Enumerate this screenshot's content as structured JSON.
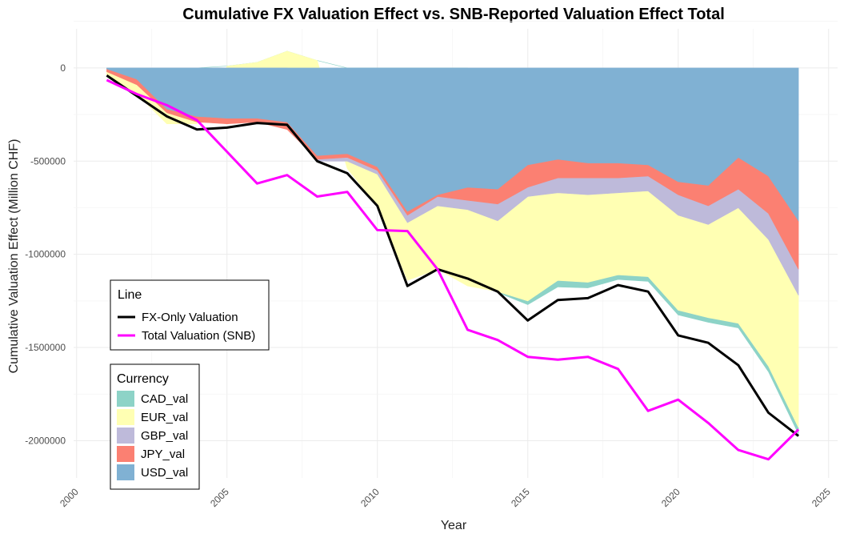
{
  "chart_data": {
    "type": "area",
    "title": "Cumulative FX Valuation Effect vs. SNB-Reported Valuation Effect Total",
    "xlabel": "Year",
    "ylabel": "Cumulative Valuation Effect (Million CHF)",
    "xlim": [
      1999.9,
      2025.3
    ],
    "ylim": [
      -2200000,
      210000
    ],
    "xticks": [
      2000,
      2005,
      2010,
      2015,
      2020,
      2025
    ],
    "yticks": [
      0,
      -500000,
      -1000000,
      -1500000,
      -2000000
    ],
    "ytick_labels": [
      "0",
      "-500000",
      "-1000000",
      "-1500000",
      "-2000000"
    ],
    "grid": true,
    "x": [
      2001,
      2002,
      2003,
      2004,
      2005,
      2006,
      2007,
      2008,
      2009,
      2010,
      2011,
      2012,
      2013,
      2014,
      2015,
      2016,
      2017,
      2018,
      2019,
      2020,
      2021,
      2022,
      2023,
      2024
    ],
    "area_series": [
      {
        "name": "CAD_val",
        "color": "#8DD3C7",
        "values": [
          0,
          0,
          0,
          0,
          0,
          0,
          0,
          0,
          0,
          0,
          0,
          0,
          0,
          -5000,
          -20000,
          -35000,
          -30000,
          -25000,
          -25000,
          -25000,
          -25000,
          -25000,
          -30000,
          -35000
        ]
      },
      {
        "name": "EUR_val",
        "color": "#FFFFB3",
        "values": [
          -20000,
          -50000,
          -60000,
          -10000,
          10000,
          30000,
          90000,
          40000,
          -40000,
          -170000,
          -310000,
          -340000,
          -410000,
          -380000,
          -560000,
          -470000,
          -470000,
          -440000,
          -460000,
          -510000,
          -500000,
          -620000,
          -680000,
          -710000
        ]
      },
      {
        "name": "GBP_val",
        "color": "#BEBADA",
        "values": [
          0,
          0,
          0,
          0,
          0,
          0,
          0,
          -10000,
          -20000,
          -20000,
          -40000,
          -50000,
          -50000,
          -90000,
          -50000,
          -80000,
          -90000,
          -80000,
          -80000,
          -110000,
          -100000,
          -100000,
          -140000,
          -140000
        ]
      },
      {
        "name": "JPY_val",
        "color": "#FB8072",
        "values": [
          -15000,
          -30000,
          -20000,
          -30000,
          -30000,
          -20000,
          -40000,
          -20000,
          -20000,
          -20000,
          -20000,
          -10000,
          -70000,
          -80000,
          -120000,
          -100000,
          -80000,
          -80000,
          -60000,
          -70000,
          -110000,
          -170000,
          -200000,
          -260000
        ]
      },
      {
        "name": "USD_val",
        "color": "#80B1D3",
        "values": [
          -5000,
          -60000,
          -220000,
          -260000,
          -270000,
          -270000,
          -290000,
          -470000,
          -460000,
          -530000,
          -770000,
          -680000,
          -640000,
          -650000,
          -520000,
          -490000,
          -510000,
          -510000,
          -520000,
          -610000,
          -630000,
          -480000,
          -580000,
          -820000
        ]
      }
    ],
    "line_series": [
      {
        "name": "FX-Only Valuation",
        "color": "#000000",
        "values": [
          -40000,
          -150000,
          -260000,
          -330000,
          -320000,
          -295000,
          -305000,
          -500000,
          -565000,
          -740000,
          -1170000,
          -1080000,
          -1130000,
          -1200000,
          -1355000,
          -1245000,
          -1235000,
          -1165000,
          -1200000,
          -1435000,
          -1475000,
          -1595000,
          -1850000,
          -1975000
        ]
      },
      {
        "name": "Total Valuation (SNB)",
        "color": "#FF00FF",
        "values": [
          -65000,
          -140000,
          -200000,
          -280000,
          -450000,
          -620000,
          -575000,
          -690000,
          -665000,
          -870000,
          -875000,
          -1080000,
          -1405000,
          -1460000,
          -1550000,
          -1565000,
          -1550000,
          -1615000,
          -1840000,
          -1780000,
          -1905000,
          -2050000,
          -2100000,
          -1940000
        ]
      }
    ],
    "legends": [
      {
        "title": "Line",
        "placement": "left-middle",
        "entries": [
          "FX-Only Valuation",
          "Total Valuation (SNB)"
        ]
      },
      {
        "title": "Currency",
        "placement": "left-bottom",
        "entries": [
          "CAD_val",
          "EUR_val",
          "GBP_val",
          "JPY_val",
          "USD_val"
        ]
      }
    ]
  }
}
